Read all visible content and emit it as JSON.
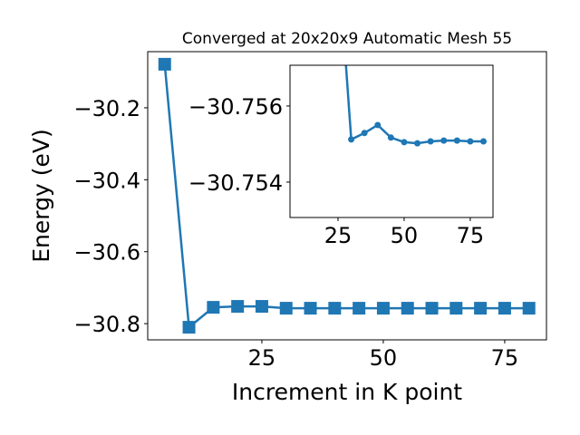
{
  "chart_data": [
    {
      "type": "line",
      "title": "Converged at 20x20x9 Automatic Mesh 55",
      "xlabel": "Increment in K point",
      "ylabel": "Energy (eV)",
      "x": [
        5,
        10,
        15,
        20,
        25,
        30,
        35,
        40,
        45,
        50,
        55,
        60,
        65,
        70,
        75,
        80
      ],
      "series": [
        {
          "color": "#1f77b4",
          "marker": "square",
          "values": [
            -30.079,
            -30.81,
            -30.7546,
            -30.752,
            -30.752,
            -30.7571,
            -30.7571,
            -30.7571,
            -30.7571,
            -30.7571,
            -30.7571,
            -30.7571,
            -30.7571,
            -30.7571,
            -30.7571,
            -30.7571
          ]
        }
      ],
      "xlim": [
        1.5,
        83.6
      ],
      "ylim": [
        -30.845,
        -30.044
      ],
      "xticks": [
        25,
        50,
        75
      ],
      "yticks": [
        {
          "value": -30.2,
          "label": "−30.2"
        },
        {
          "value": -30.4,
          "label": "−30.4"
        },
        {
          "value": -30.6,
          "label": "−30.6"
        },
        {
          "value": -30.8,
          "label": "−30.8"
        }
      ]
    },
    {
      "type": "line",
      "x": [
        25,
        30,
        35,
        40,
        45,
        50,
        55,
        60,
        65,
        70,
        75,
        80
      ],
      "series": [
        {
          "color": "#1f77b4",
          "marker": "circle",
          "values": [
            -30.76,
            -30.75512,
            -30.75529,
            -30.7555,
            -30.75517,
            -30.75505,
            -30.75502,
            -30.75507,
            -30.75509,
            -30.75509,
            -30.75507,
            -30.75507
          ]
        }
      ],
      "xlim": [
        6.85,
        83.6
      ],
      "ylim": [
        -30.75307,
        -30.75707
      ],
      "xticks": [
        25,
        50,
        75
      ],
      "yticks": [
        {
          "value": -30.756,
          "label": "−30.756"
        },
        {
          "value": -30.754,
          "label": "−30.754"
        }
      ]
    }
  ]
}
